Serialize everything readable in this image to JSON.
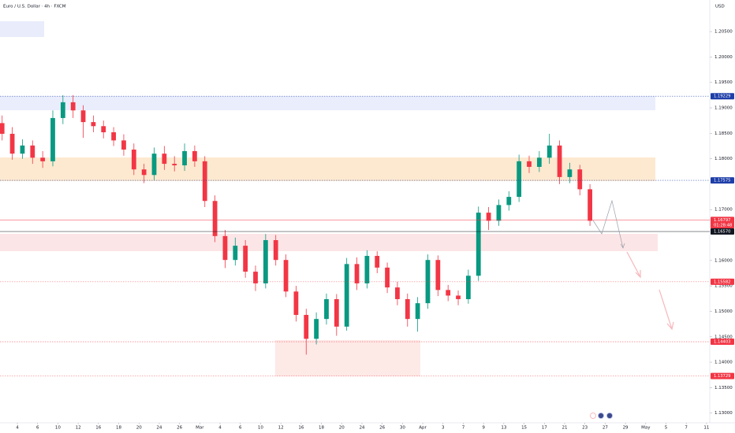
{
  "chart_data": {
    "type": "candlestick",
    "title": "Euro / U.S. Dollar · 4h · FXCM",
    "currency": "USD",
    "up_color": "#089981",
    "down_color": "#f23645",
    "xlim": [
      -0.856,
      34.16
    ],
    "ylim": [
      1.1281,
      1.2112
    ],
    "x": [
      -0.75,
      -0.25,
      0.25,
      0.75,
      1.25,
      1.75,
      2.25,
      2.75,
      3.25,
      3.75,
      4.25,
      4.75,
      5.25,
      5.75,
      6.25,
      6.75,
      7.25,
      7.75,
      8.25,
      8.75,
      9.25,
      9.75,
      10.25,
      10.75,
      11.25,
      11.75,
      12.25,
      12.75,
      13.25,
      13.75,
      14.25,
      14.75,
      15.25,
      15.75,
      16.25,
      16.75,
      17.25,
      17.75,
      18.25,
      18.75,
      19.25,
      19.75,
      20.25,
      20.75,
      21.25,
      21.75,
      22.25,
      22.75,
      23.25,
      23.75,
      24.25,
      24.75,
      25.25,
      25.75,
      26.25,
      26.75,
      27.25,
      27.75,
      28.25
    ],
    "open": [
      1.187,
      1.1849,
      1.181,
      1.1826,
      1.1802,
      1.1795,
      1.188,
      1.1911,
      1.1895,
      1.1872,
      1.1864,
      1.1852,
      1.1836,
      1.1818,
      1.1779,
      1.1768,
      1.181,
      1.179,
      1.1787,
      1.1815,
      1.1795,
      1.1717,
      1.1648,
      1.1601,
      1.1629,
      1.1578,
      1.1555,
      1.164,
      1.1601,
      1.1539,
      1.1493,
      1.1446,
      1.1485,
      1.1524,
      1.147,
      1.1593,
      1.1555,
      1.1609,
      1.1586,
      1.1547,
      1.1524,
      1.1485,
      1.1516,
      1.1601,
      1.1542,
      1.1531,
      1.1524,
      1.157,
      1.1694,
      1.1678,
      1.1709,
      1.1725,
      1.1795,
      1.1784,
      1.1802,
      1.1826,
      1.1764,
      1.1779,
      1.174
    ],
    "high": [
      1.1885,
      1.1862,
      1.1838,
      1.1836,
      1.1815,
      1.1895,
      1.1925,
      1.1925,
      1.1905,
      1.1885,
      1.1875,
      1.1862,
      1.1848,
      1.183,
      1.179,
      1.1822,
      1.1825,
      1.1805,
      1.183,
      1.1826,
      1.1805,
      1.1728,
      1.166,
      1.1645,
      1.164,
      1.159,
      1.1652,
      1.165,
      1.1612,
      1.155,
      1.1505,
      1.1498,
      1.1535,
      1.1534,
      1.1605,
      1.1606,
      1.162,
      1.1618,
      1.1596,
      1.1558,
      1.1535,
      1.1528,
      1.1612,
      1.161,
      1.1552,
      1.1541,
      1.1582,
      1.1706,
      1.1705,
      1.172,
      1.1736,
      1.1808,
      1.1806,
      1.1815,
      1.1849,
      1.1836,
      1.1792,
      1.1788,
      1.175
    ],
    "low": [
      1.1836,
      1.1798,
      1.18,
      1.179,
      1.1782,
      1.1785,
      1.1868,
      1.188,
      1.1841,
      1.1852,
      1.184,
      1.1825,
      1.1806,
      1.1768,
      1.1752,
      1.1758,
      1.1778,
      1.1775,
      1.1776,
      1.1784,
      1.1705,
      1.1636,
      1.1585,
      1.159,
      1.1566,
      1.154,
      1.1545,
      1.159,
      1.1528,
      1.148,
      1.1415,
      1.1435,
      1.1474,
      1.1452,
      1.1462,
      1.1542,
      1.1545,
      1.1575,
      1.1536,
      1.1512,
      1.147,
      1.146,
      1.1505,
      1.153,
      1.152,
      1.1512,
      1.1515,
      1.156,
      1.166,
      1.1668,
      1.1698,
      1.1715,
      1.1772,
      1.1774,
      1.179,
      1.175,
      1.1752,
      1.1728,
      1.1668
    ],
    "close": [
      1.1849,
      1.181,
      1.1826,
      1.1802,
      1.1795,
      1.188,
      1.1911,
      1.1895,
      1.1872,
      1.1864,
      1.1852,
      1.1836,
      1.1818,
      1.1779,
      1.1768,
      1.181,
      1.179,
      1.1787,
      1.1815,
      1.1795,
      1.1717,
      1.1648,
      1.1601,
      1.1629,
      1.1578,
      1.1555,
      1.164,
      1.1601,
      1.1539,
      1.1493,
      1.1446,
      1.1485,
      1.1524,
      1.147,
      1.1593,
      1.1555,
      1.1609,
      1.1586,
      1.1547,
      1.1524,
      1.1485,
      1.1516,
      1.1601,
      1.1542,
      1.1531,
      1.1524,
      1.157,
      1.1694,
      1.1678,
      1.1709,
      1.1725,
      1.1795,
      1.1784,
      1.1802,
      1.1826,
      1.1764,
      1.1779,
      1.174,
      1.1678
    ],
    "yticks": [
      {
        "value": 1.205,
        "label": "1.20500"
      },
      {
        "value": 1.2,
        "label": "1.20000"
      },
      {
        "value": 1.195,
        "label": "1.19500"
      },
      {
        "value": 1.19,
        "label": "1.19000"
      },
      {
        "value": 1.185,
        "label": "1.18500"
      },
      {
        "value": 1.18,
        "label": "1.18000"
      },
      {
        "value": 1.17,
        "label": "1.17000"
      },
      {
        "value": 1.16,
        "label": "1.16000"
      },
      {
        "value": 1.155,
        "label": "1.15500"
      },
      {
        "value": 1.15,
        "label": "1.15000"
      },
      {
        "value": 1.145,
        "label": "1.14500"
      },
      {
        "value": 1.14,
        "label": "1.14000"
      },
      {
        "value": 1.135,
        "label": "1.13500"
      },
      {
        "value": 1.13,
        "label": "1.13000"
      }
    ],
    "xticks": [
      {
        "value": 0,
        "label": "4"
      },
      {
        "value": 1,
        "label": "6"
      },
      {
        "value": 2,
        "label": "10"
      },
      {
        "value": 3,
        "label": "12"
      },
      {
        "value": 4,
        "label": "16"
      },
      {
        "value": 5,
        "label": "18"
      },
      {
        "value": 6,
        "label": "20"
      },
      {
        "value": 7,
        "label": "24"
      },
      {
        "value": 8,
        "label": "26"
      },
      {
        "value": 9,
        "label": "Mar"
      },
      {
        "value": 10,
        "label": "4"
      },
      {
        "value": 11,
        "label": "6"
      },
      {
        "value": 12,
        "label": "10"
      },
      {
        "value": 13,
        "label": "12"
      },
      {
        "value": 14,
        "label": "16"
      },
      {
        "value": 15,
        "label": "18"
      },
      {
        "value": 16,
        "label": "20"
      },
      {
        "value": 17,
        "label": "24"
      },
      {
        "value": 18,
        "label": "26"
      },
      {
        "value": 19,
        "label": "30"
      },
      {
        "value": 20,
        "label": "Apr"
      },
      {
        "value": 21,
        "label": "3"
      },
      {
        "value": 22,
        "label": "7"
      },
      {
        "value": 23,
        "label": "9"
      },
      {
        "value": 24,
        "label": "13"
      },
      {
        "value": 25,
        "label": "15"
      },
      {
        "value": 26,
        "label": "17"
      },
      {
        "value": 27,
        "label": "21"
      },
      {
        "value": 28,
        "label": "23"
      },
      {
        "value": 29,
        "label": "27"
      },
      {
        "value": 30,
        "label": "29"
      },
      {
        "value": 31,
        "label": "May"
      },
      {
        "value": 32,
        "label": "5"
      },
      {
        "value": 33,
        "label": "7"
      },
      {
        "value": 34,
        "label": "11"
      }
    ],
    "levels": [
      {
        "value": 1.19229,
        "color": "#1e3ea8",
        "dash": true
      },
      {
        "value": 1.17575,
        "color": "#1e3ea8",
        "dash": true
      },
      {
        "value": 1.16797,
        "color": "#f23645",
        "countdown": "01:28:48"
      },
      {
        "value": 1.1657,
        "label": "1.16570",
        "color": "#131722"
      },
      {
        "value": 1.15582,
        "color": "#f23645",
        "dash": true
      },
      {
        "value": 1.14403,
        "color": "#f23645",
        "dash": true
      },
      {
        "value": 1.13729,
        "color": "#f23645",
        "dash": true
      }
    ]
  }
}
